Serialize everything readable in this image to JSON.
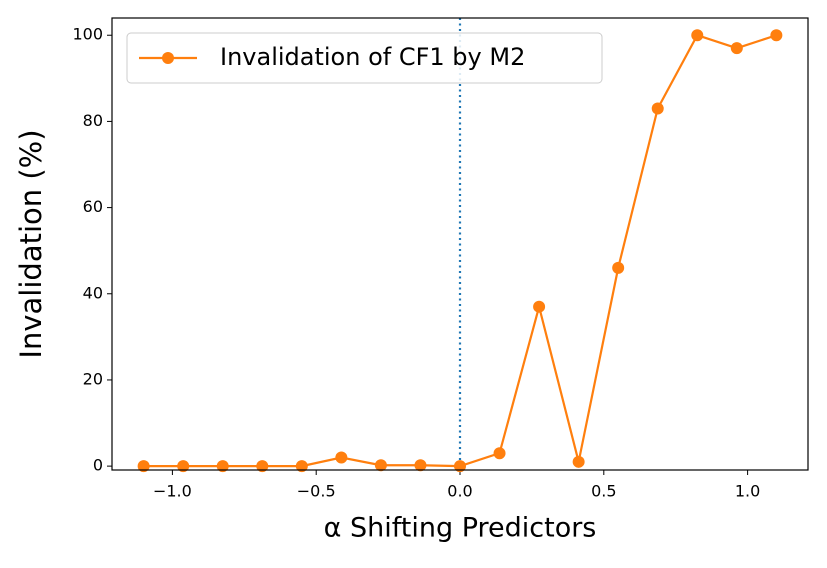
{
  "chart_data": {
    "type": "line",
    "xlabel": "α Shifting Predictors",
    "ylabel": "Invalidation (%)",
    "x": [
      -1.1,
      -0.9625,
      -0.825,
      -0.6875,
      -0.55,
      -0.4125,
      -0.275,
      -0.1375,
      0,
      0.1375,
      0.275,
      0.4125,
      0.55,
      0.6875,
      0.825,
      0.9625,
      1.1
    ],
    "series": [
      {
        "name": "Invalidation of CF1 by M2",
        "color": "#ff7f0e",
        "values": [
          0,
          0,
          0,
          0,
          0,
          2,
          0.2,
          0.2,
          0,
          3,
          37,
          1,
          46,
          83,
          100,
          97,
          100
        ]
      }
    ],
    "xlim": [
      -1.21,
      1.21
    ],
    "ylim": [
      -0.9,
      104
    ],
    "xticks": [
      {
        "value": -1.0,
        "label": "−1.0"
      },
      {
        "value": -0.5,
        "label": "−0.5"
      },
      {
        "value": 0,
        "label": "0.0"
      },
      0.5,
      {
        "value": 1,
        "label": "1.0"
      }
    ],
    "yticks": [
      0,
      20,
      40,
      60,
      80,
      100
    ],
    "vline": {
      "x": 0,
      "color": "#1f77b4"
    },
    "legend": "upper left"
  }
}
